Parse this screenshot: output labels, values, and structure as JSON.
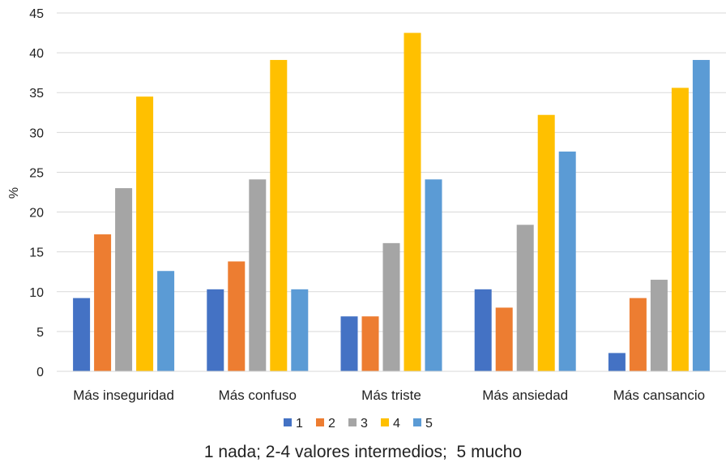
{
  "chart_data": {
    "type": "bar",
    "categories": [
      "Más inseguridad",
      "Más confuso",
      "Más triste",
      "Más ansiedad",
      "Más cansancio"
    ],
    "series": [
      {
        "name": "1",
        "color": "#4472C4",
        "values": [
          9.2,
          10.3,
          6.9,
          10.3,
          2.3
        ]
      },
      {
        "name": "2",
        "color": "#ED7D31",
        "values": [
          17.2,
          13.8,
          6.9,
          8.0,
          9.2
        ]
      },
      {
        "name": "3",
        "color": "#A5A5A5",
        "values": [
          23.0,
          24.1,
          16.1,
          18.4,
          11.5
        ]
      },
      {
        "name": "4",
        "color": "#FFC000",
        "values": [
          34.5,
          39.1,
          42.5,
          32.2,
          35.6
        ]
      },
      {
        "name": "5",
        "color": "#5B9BD5",
        "values": [
          12.6,
          10.3,
          24.1,
          27.6,
          39.1
        ]
      }
    ],
    "ylabel": "%",
    "xlabel": "",
    "ylim": [
      0,
      45
    ],
    "yticks": [
      0,
      5,
      10,
      15,
      20,
      25,
      30,
      35,
      40,
      45
    ],
    "grid": true,
    "legend_position": "bottom",
    "caption": "1 nada; 2-4 valores intermedios;  5 mucho"
  }
}
